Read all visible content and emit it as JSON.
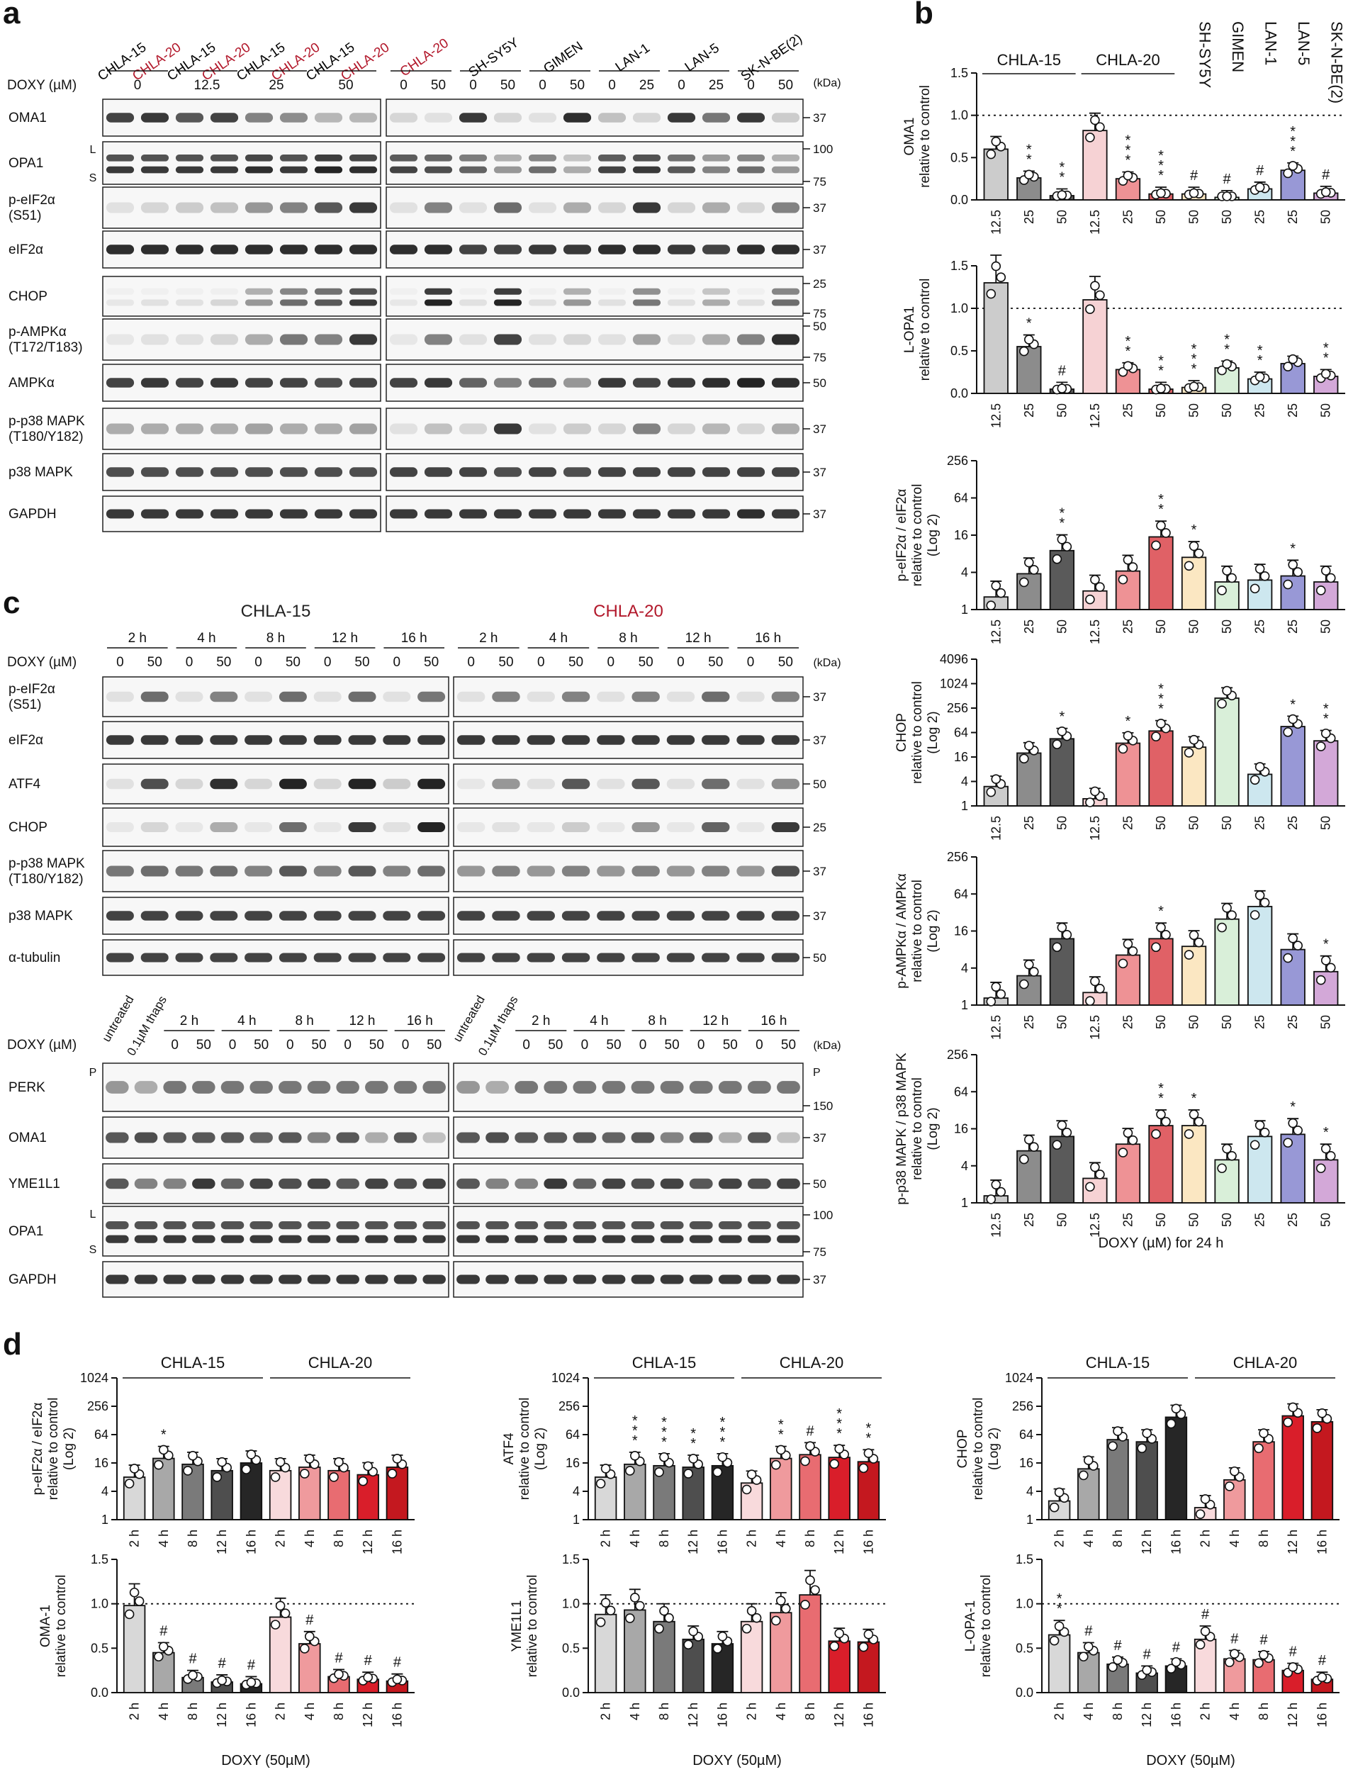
{
  "panels": {
    "a": "a",
    "b": "b",
    "c": "c",
    "d": "d"
  },
  "kda_label": "(kDa)",
  "blot_a": {
    "doxy_label": "DOXY (µM)",
    "left_cells": [
      {
        "name": "CHLA-15",
        "color": "#000000"
      },
      {
        "name": "CHLA-20",
        "color": "#b2182b"
      },
      {
        "name": "CHLA-15",
        "color": "#000000"
      },
      {
        "name": "CHLA-20",
        "color": "#b2182b"
      },
      {
        "name": "CHLA-15",
        "color": "#000000"
      },
      {
        "name": "CHLA-20",
        "color": "#b2182b"
      },
      {
        "name": "CHLA-15",
        "color": "#000000"
      },
      {
        "name": "CHLA-20",
        "color": "#b2182b"
      }
    ],
    "left_doses": [
      "0",
      "12.5",
      "25",
      "50"
    ],
    "right_groups": [
      {
        "name": "CHLA-20",
        "color": "#b2182b",
        "doses": [
          "0",
          "50"
        ]
      },
      {
        "name": "SH-SY5Y",
        "color": "#000000",
        "doses": [
          "0",
          "50"
        ]
      },
      {
        "name": "GIMEN",
        "color": "#000000",
        "doses": [
          "0",
          "50"
        ]
      },
      {
        "name": "LAN-1",
        "color": "#000000",
        "doses": [
          "0",
          "25"
        ]
      },
      {
        "name": "LAN-5",
        "color": "#000000",
        "doses": [
          "0",
          "25"
        ]
      },
      {
        "name": "SK-N-BE(2)",
        "color": "#000000",
        "doses": [
          "0",
          "50"
        ]
      }
    ],
    "rows": [
      {
        "label": "OMA1",
        "markers": [
          "37"
        ]
      },
      {
        "label": "OPA1",
        "markers": [
          "100",
          "75"
        ],
        "side": [
          "L",
          "S"
        ]
      },
      {
        "label": "p-eIF2α\n(S51)",
        "markers": [
          "37"
        ]
      },
      {
        "label": "eIF2α",
        "markers": [
          "37"
        ]
      },
      {
        "label": "CHOP",
        "markers": [
          "25",
          "75"
        ]
      },
      {
        "label": "p-AMPKα\n(T172/T183)",
        "markers": [
          "50",
          "75"
        ]
      },
      {
        "label": "AMPKα",
        "markers": [
          "50"
        ]
      },
      {
        "label": "p-p38 MAPK\n(T180/Y182)",
        "markers": [
          "37"
        ]
      },
      {
        "label": "p38 MAPK",
        "markers": [
          "37"
        ]
      },
      {
        "label": "GAPDH",
        "markers": [
          "37"
        ]
      }
    ]
  },
  "blot_c1": {
    "cells": [
      {
        "name": "CHLA-15",
        "color": "#222222"
      },
      {
        "name": "CHLA-20",
        "color": "#b2182b"
      }
    ],
    "times": [
      "2 h",
      "4 h",
      "8 h",
      "12 h",
      "16 h"
    ],
    "doses": [
      "0",
      "50"
    ],
    "doxy_label": "DOXY (µM)",
    "rows": [
      {
        "label": "p-eIF2α\n(S51)",
        "markers": [
          "37"
        ]
      },
      {
        "label": "eIF2α",
        "markers": [
          "37"
        ]
      },
      {
        "label": "ATF4",
        "markers": [
          "50"
        ]
      },
      {
        "label": "CHOP",
        "markers": [
          "25"
        ]
      },
      {
        "label": "p-p38 MAPK\n(T180/Y182)",
        "markers": [
          "37"
        ]
      },
      {
        "label": "p38 MAPK",
        "markers": [
          "37"
        ]
      },
      {
        "label": "α-tubulin",
        "markers": [
          "50"
        ]
      }
    ]
  },
  "blot_c2": {
    "extra_lanes": [
      "untreated",
      "0.1µM thaps"
    ],
    "times": [
      "2 h",
      "4 h",
      "8 h",
      "12 h",
      "16 h"
    ],
    "doses": [
      "0",
      "50"
    ],
    "doxy_label": "DOXY (µM)",
    "rows": [
      {
        "label": "PERK",
        "markers": [
          "150"
        ],
        "side": [
          "P"
        ]
      },
      {
        "label": "OMA1",
        "markers": [
          "37"
        ]
      },
      {
        "label": "YME1L1",
        "markers": [
          "50"
        ]
      },
      {
        "label": "OPA1",
        "markers": [
          "100",
          "75"
        ],
        "side": [
          "L",
          "S"
        ]
      },
      {
        "label": "GAPDH",
        "markers": [
          "37"
        ]
      }
    ]
  },
  "chart_data": [
    {
      "id": "b1",
      "type": "bar",
      "ylabel": "OMA1\nrelative to control",
      "scale": "linear",
      "ylim": [
        0,
        1.5
      ],
      "yticks": [
        "0.0",
        "0.5",
        "1.0",
        "1.5"
      ],
      "refline": 1.0,
      "categories": [
        "12.5",
        "25",
        "50",
        "12.5",
        "25",
        "50",
        "50",
        "50",
        "25",
        "25",
        "50"
      ],
      "values": [
        0.6,
        0.26,
        0.05,
        0.82,
        0.25,
        0.07,
        0.07,
        0.03,
        0.13,
        0.35,
        0.08
      ],
      "sig": [
        "",
        "* *",
        "* *",
        "",
        "* * *",
        "* * *",
        "#",
        "#",
        "#",
        "* * *",
        "#"
      ]
    },
    {
      "id": "b2",
      "type": "bar",
      "ylabel": "L-OPA1\nrelative to control",
      "scale": "linear",
      "ylim": [
        0,
        1.5
      ],
      "yticks": [
        "0.0",
        "0.5",
        "1.0",
        "1.5"
      ],
      "refline": 1.0,
      "categories": [
        "12.5",
        "25",
        "50",
        "12.5",
        "25",
        "50",
        "50",
        "50",
        "25",
        "25",
        "50"
      ],
      "values": [
        1.3,
        0.55,
        0.05,
        1.1,
        0.28,
        0.05,
        0.07,
        0.3,
        0.17,
        0.35,
        0.2
      ],
      "sig": [
        "",
        "*",
        "#",
        "",
        "* *",
        "* *",
        "* * *",
        "* *",
        "* *",
        "",
        "* *"
      ]
    },
    {
      "id": "b3",
      "type": "bar",
      "ylabel": "p-eIF2α / eIF2α\nrelative to control\n(Log 2)",
      "scale": "log2",
      "ylim": [
        1,
        256
      ],
      "yticks": [
        "1",
        "4",
        "16",
        "64",
        "256"
      ],
      "categories": [
        "12.5",
        "25",
        "50",
        "12.5",
        "25",
        "50",
        "50",
        "50",
        "25",
        "25",
        "50"
      ],
      "values": [
        1.6,
        3.8,
        9.0,
        2.0,
        4.2,
        15.0,
        7.0,
        2.8,
        3.0,
        3.5,
        2.8
      ],
      "sig": [
        "",
        "",
        "* *",
        "",
        "",
        "* *",
        "*",
        "",
        "",
        "*",
        ""
      ]
    },
    {
      "id": "b4",
      "type": "bar",
      "ylabel": "CHOP\nrelative to control\n(Log 2)",
      "scale": "log2",
      "ylim": [
        1,
        4096
      ],
      "yticks": [
        "1",
        "4",
        "16",
        "64",
        "256",
        "1024",
        "4096"
      ],
      "categories": [
        "12.5",
        "25",
        "50",
        "12.5",
        "25",
        "50",
        "50",
        "50",
        "25",
        "25",
        "50"
      ],
      "values": [
        3.0,
        20.0,
        45.0,
        1.5,
        35.0,
        70.0,
        28.0,
        450.0,
        6.0,
        90.0,
        40.0
      ],
      "sig": [
        "",
        "",
        "*",
        "",
        "*",
        "* * *",
        "",
        "",
        "",
        "*",
        "* *"
      ]
    },
    {
      "id": "b5",
      "type": "bar",
      "ylabel": "p-AMPKα / AMPKα\nrelative to control\n(Log 2)",
      "scale": "log2",
      "ylim": [
        1,
        256
      ],
      "yticks": [
        "1",
        "4",
        "16",
        "64",
        "256"
      ],
      "categories": [
        "12.5",
        "25",
        "50",
        "12.5",
        "25",
        "50",
        "50",
        "50",
        "25",
        "25",
        "50"
      ],
      "values": [
        1.3,
        3.0,
        12.0,
        1.6,
        6.5,
        12.0,
        9.0,
        25.0,
        40.0,
        8.0,
        3.5
      ],
      "sig": [
        "",
        "",
        "",
        "",
        "",
        "*",
        "",
        "",
        "",
        "",
        "*"
      ]
    },
    {
      "id": "b6",
      "type": "bar",
      "ylabel": "p-p38 MAPK / p38 MAPK\nrelative to control\n(Log 2)",
      "scale": "log2",
      "ylim": [
        1,
        256
      ],
      "yticks": [
        "1",
        "4",
        "16",
        "64",
        "256"
      ],
      "categories": [
        "12.5",
        "25",
        "50",
        "12.5",
        "25",
        "50",
        "50",
        "50",
        "25",
        "25",
        "50"
      ],
      "values": [
        1.3,
        7.0,
        12.0,
        2.5,
        9.0,
        18.0,
        18.0,
        5.0,
        12.0,
        13.0,
        5.0
      ],
      "sig": [
        "",
        "",
        "",
        "",
        "",
        "* *",
        "*",
        "",
        "",
        "*",
        "*"
      ]
    },
    {
      "id": "d1",
      "type": "bar",
      "ylabel": "p-eIF2α / eIF2α\nrelative to control\n(Log 2)",
      "scale": "log2",
      "ylim": [
        1,
        1024
      ],
      "yticks": [
        "1",
        "4",
        "16",
        "64",
        "256",
        "1024"
      ],
      "categories": [
        "2 h",
        "4 h",
        "8 h",
        "12 h",
        "16 h",
        "2 h",
        "4 h",
        "8 h",
        "12 h",
        "16 h"
      ],
      "values": [
        8.0,
        20.0,
        15.0,
        11.0,
        16.0,
        11.0,
        13.0,
        11.0,
        9.0,
        13.0
      ],
      "sig": [
        "",
        "*",
        "",
        "",
        "",
        "",
        "",
        "",
        "",
        ""
      ]
    },
    {
      "id": "d2",
      "type": "bar",
      "ylabel": "ATF4\nrelative to control\n(Log 2)",
      "scale": "log2",
      "ylim": [
        1,
        1024
      ],
      "yticks": [
        "1",
        "4",
        "16",
        "64",
        "256",
        "1024"
      ],
      "categories": [
        "2 h",
        "4 h",
        "8 h",
        "12 h",
        "16 h",
        "2 h",
        "4 h",
        "8 h",
        "12 h",
        "16 h"
      ],
      "values": [
        8.0,
        15.0,
        14.0,
        13.0,
        14.0,
        6.0,
        20.0,
        24.0,
        21.0,
        17.0
      ],
      "sig": [
        "",
        "* * *",
        "* * *",
        "* *",
        "* * *",
        "",
        "* *",
        "#",
        "* * *",
        "* *"
      ]
    },
    {
      "id": "d3",
      "type": "bar",
      "ylabel": "CHOP\nrelative to control\n(Log 2)",
      "scale": "log2",
      "ylim": [
        1,
        1024
      ],
      "yticks": [
        "1",
        "4",
        "16",
        "64",
        "256",
        "1024"
      ],
      "categories": [
        "2 h",
        "4 h",
        "8 h",
        "12 h",
        "16 h",
        "2 h",
        "4 h",
        "8 h",
        "12 h",
        "16 h"
      ],
      "values": [
        2.5,
        12.0,
        50.0,
        45.0,
        150.0,
        1.8,
        7.0,
        45.0,
        160.0,
        120.0
      ],
      "sig": [
        "",
        "",
        "",
        "",
        "",
        "",
        "",
        "",
        "",
        ""
      ]
    },
    {
      "id": "d4",
      "type": "bar",
      "ylabel": "OMA-1\nrelative to control",
      "scale": "linear",
      "ylim": [
        0,
        1.5
      ],
      "yticks": [
        "0.0",
        "0.5",
        "1.0",
        "1.5"
      ],
      "refline": 1.0,
      "categories": [
        "2 h",
        "4 h",
        "8 h",
        "12 h",
        "16 h",
        "2 h",
        "4 h",
        "8 h",
        "12 h",
        "16 h"
      ],
      "values": [
        0.98,
        0.45,
        0.17,
        0.12,
        0.1,
        0.85,
        0.55,
        0.18,
        0.15,
        0.13
      ],
      "sig": [
        "",
        "#",
        "#",
        "#",
        "#",
        "",
        "#",
        "#",
        "#",
        "#"
      ]
    },
    {
      "id": "d5",
      "type": "bar",
      "ylabel": "YME1L1\nrelative to control",
      "scale": "linear",
      "ylim": [
        0,
        1.5
      ],
      "yticks": [
        "0.0",
        "0.5",
        "1.0",
        "1.5"
      ],
      "refline": 1.0,
      "categories": [
        "2 h",
        "4 h",
        "8 h",
        "12 h",
        "16 h",
        "2 h",
        "4 h",
        "8 h",
        "12 h",
        "16 h"
      ],
      "values": [
        0.88,
        0.93,
        0.8,
        0.6,
        0.55,
        0.8,
        0.9,
        1.1,
        0.58,
        0.57
      ],
      "sig": [
        "",
        "",
        "",
        "",
        "",
        "",
        "",
        "",
        "",
        ""
      ]
    },
    {
      "id": "d6",
      "type": "bar",
      "ylabel": "L-OPA-1\nrelative to control",
      "scale": "linear",
      "ylim": [
        0,
        1.5
      ],
      "yticks": [
        "0.0",
        "0.5",
        "1.0",
        "1.5"
      ],
      "refline": 1.0,
      "categories": [
        "2 h",
        "4 h",
        "8 h",
        "12 h",
        "16 h",
        "2 h",
        "4 h",
        "8 h",
        "12 h",
        "16 h"
      ],
      "values": [
        0.65,
        0.45,
        0.32,
        0.22,
        0.3,
        0.6,
        0.38,
        0.37,
        0.25,
        0.15
      ],
      "sig": [
        "* *",
        "#",
        "#",
        "#",
        "#",
        "#",
        "#",
        "#",
        "#",
        "#"
      ]
    }
  ],
  "b_groups": [
    "CHLA-15",
    "CHLA-20"
  ],
  "b_cellnames": [
    "SH-SY5Y",
    "GIMEN",
    "LAN-1",
    "LAN-5",
    "SK-N-BE(2)"
  ],
  "b_xlabel": "DOXY (µM) for 24 h",
  "d_groups": [
    "CHLA-15",
    "CHLA-20"
  ],
  "d_xlabel": "DOXY (50µM)",
  "colors": {
    "b_bars": [
      "#cccccc",
      "#8c8c8c",
      "#5a5a5a",
      "#f6d2d4",
      "#ee9295",
      "#e06166",
      "#fbe7c2",
      "#d9efd9",
      "#cde7ef",
      "#9898d6",
      "#d3a8d8"
    ],
    "d_bars": [
      "#d8d8d8",
      "#a8a8a8",
      "#7a7a7a",
      "#4e4e4e",
      "#262626",
      "#f8dadc",
      "#ef9a9d",
      "#e86c71",
      "#d91e2a",
      "#c4181f"
    ]
  }
}
